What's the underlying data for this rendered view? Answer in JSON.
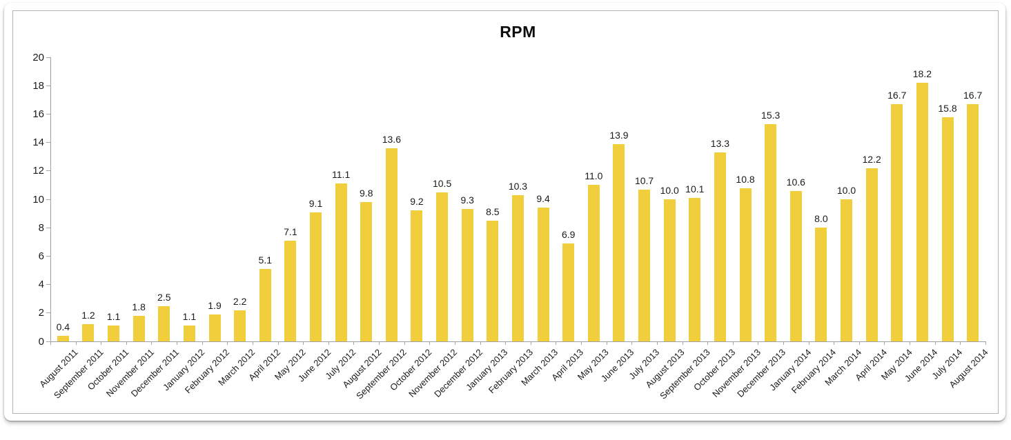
{
  "card": {
    "background": "#ffffff",
    "frame_border_color": "#b3b3b3"
  },
  "chart_data": {
    "type": "bar",
    "title": "RPM",
    "xlabel": "",
    "ylabel": "",
    "grid": "off",
    "legend": "none",
    "ylim": [
      0,
      20
    ],
    "ytick_step": 2,
    "yticks": [
      0,
      2,
      4,
      6,
      8,
      10,
      12,
      14,
      16,
      18,
      20
    ],
    "value_label_decimals": 1,
    "bar_color": "#F0CE3C",
    "axis_color": "#9e9e9e",
    "text_color": "#1a1a1a",
    "categories": [
      "August 2011",
      "September 2011",
      "October 2011",
      "November 2011",
      "December 2011",
      "January 2012",
      "February 2012",
      "March 2012",
      "April 2012",
      "May 2012",
      "June 2012",
      "July 2012",
      "August 2012",
      "September 2012",
      "October 2012",
      "November 2012",
      "December 2012",
      "January 2013",
      "February 2013",
      "March 2013",
      "April 2013",
      "May 2013",
      "June 2013",
      "July 2013",
      "August 2013",
      "September 2013",
      "October 2013",
      "November 2013",
      "December 2013",
      "January 2014",
      "February 2014",
      "March 2014",
      "April 2014",
      "May 2014",
      "June 2014",
      "July 2014",
      "August 2014"
    ],
    "values": [
      0.4,
      1.2,
      1.1,
      1.8,
      2.5,
      1.1,
      1.9,
      2.2,
      5.1,
      7.1,
      9.1,
      11.1,
      9.8,
      13.6,
      9.2,
      10.5,
      9.3,
      8.5,
      10.3,
      9.4,
      6.9,
      11.0,
      13.9,
      10.7,
      10.0,
      10.1,
      13.3,
      10.8,
      15.3,
      10.6,
      8.0,
      10.0,
      12.2,
      16.7,
      18.2,
      15.8,
      16.7
    ]
  }
}
